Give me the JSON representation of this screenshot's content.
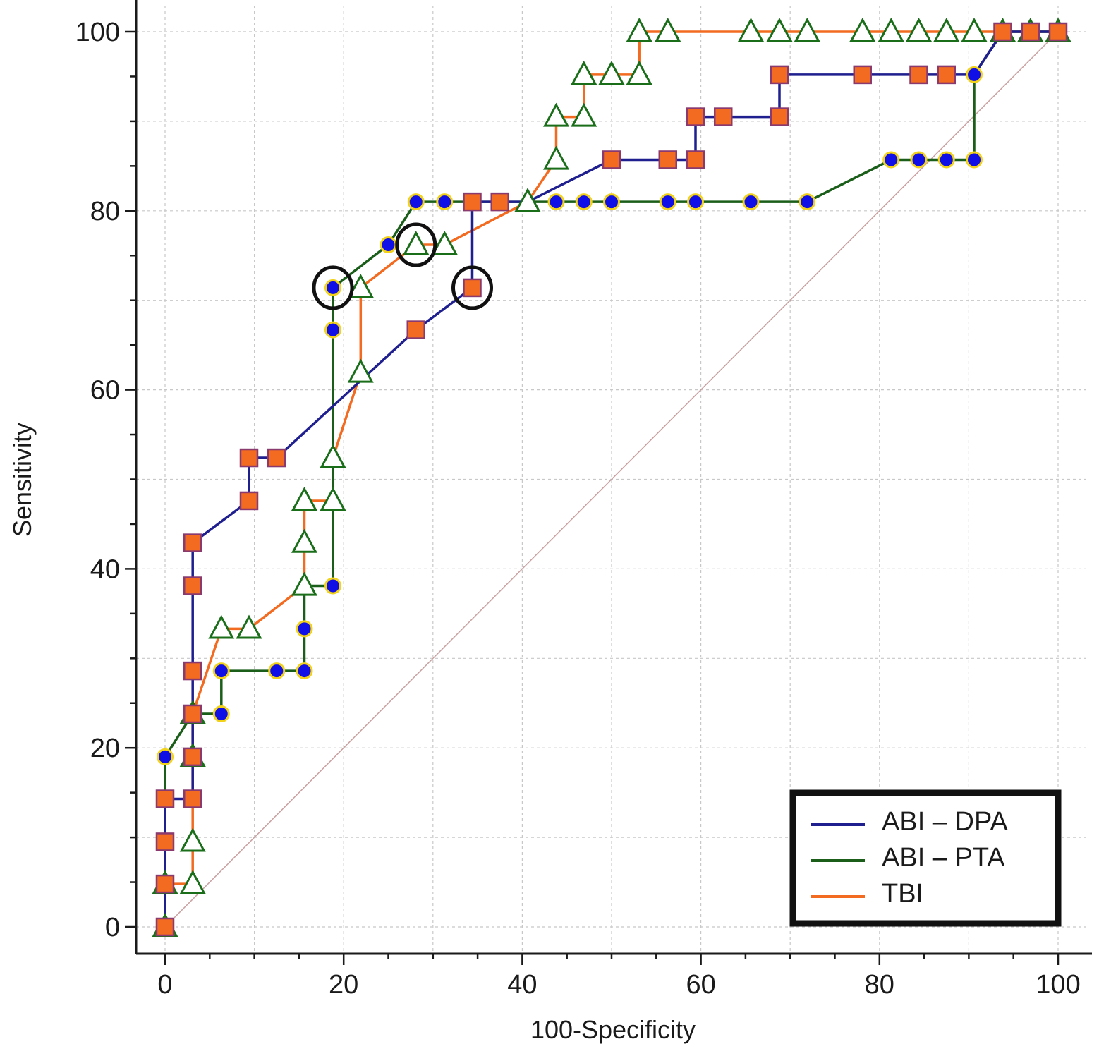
{
  "chart_data": {
    "type": "line",
    "title": "",
    "xlabel": "100-Specificity",
    "ylabel": "Sensitivity",
    "xlim": [
      -3,
      102
    ],
    "ylim": [
      -3,
      103
    ],
    "xticks": [
      0,
      20,
      40,
      60,
      80,
      100
    ],
    "yticks": [
      0,
      20,
      40,
      60,
      80,
      100
    ],
    "grid": true,
    "legend_position": "bottom-right",
    "reference_line": {
      "from": [
        0,
        0
      ],
      "to": [
        100,
        100
      ],
      "color": "#c9a0a0"
    },
    "series": [
      {
        "name": "ABI – DPA",
        "color": "#1f1f8f",
        "marker": "square",
        "marker_fill": "#f26b21",
        "marker_edge": "#8a3a6e",
        "points": [
          [
            0,
            0
          ],
          [
            0,
            4.8
          ],
          [
            0,
            9.5
          ],
          [
            0,
            14.3
          ],
          [
            3.1,
            14.3
          ],
          [
            3.1,
            19
          ],
          [
            3.1,
            23.8
          ],
          [
            3.1,
            28.6
          ],
          [
            3.1,
            38.1
          ],
          [
            3.1,
            42.9
          ],
          [
            9.4,
            47.6
          ],
          [
            9.4,
            52.4
          ],
          [
            12.5,
            52.4
          ],
          [
            28.1,
            66.7
          ],
          [
            34.4,
            71.4
          ],
          [
            34.4,
            81
          ],
          [
            37.5,
            81
          ],
          [
            40.6,
            81
          ],
          [
            50,
            85.7
          ],
          [
            56.3,
            85.7
          ],
          [
            59.4,
            85.7
          ],
          [
            59.4,
            90.5
          ],
          [
            62.5,
            90.5
          ],
          [
            68.8,
            90.5
          ],
          [
            68.8,
            95.2
          ],
          [
            78.1,
            95.2
          ],
          [
            84.4,
            95.2
          ],
          [
            87.5,
            95.2
          ],
          [
            90.6,
            95.2
          ],
          [
            93.8,
            100
          ],
          [
            96.9,
            100
          ],
          [
            100,
            100
          ]
        ],
        "markers": [
          [
            0,
            0
          ],
          [
            0,
            4.8
          ],
          [
            0,
            9.5
          ],
          [
            0,
            14.3
          ],
          [
            3.1,
            14.3
          ],
          [
            3.1,
            19
          ],
          [
            3.1,
            23.8
          ],
          [
            3.1,
            28.6
          ],
          [
            3.1,
            38.1
          ],
          [
            3.1,
            42.9
          ],
          [
            9.4,
            47.6
          ],
          [
            9.4,
            52.4
          ],
          [
            12.5,
            52.4
          ],
          [
            28.1,
            66.7
          ],
          [
            34.4,
            71.4
          ],
          [
            34.4,
            81
          ],
          [
            37.5,
            81
          ],
          [
            50,
            85.7
          ],
          [
            56.3,
            85.7
          ],
          [
            59.4,
            85.7
          ],
          [
            59.4,
            90.5
          ],
          [
            62.5,
            90.5
          ],
          [
            68.8,
            90.5
          ],
          [
            68.8,
            95.2
          ],
          [
            78.1,
            95.2
          ],
          [
            84.4,
            95.2
          ],
          [
            87.5,
            95.2
          ],
          [
            93.8,
            100
          ],
          [
            96.9,
            100
          ],
          [
            100,
            100
          ]
        ]
      },
      {
        "name": "ABI – PTA",
        "color": "#1a5e1a",
        "marker": "circle",
        "marker_fill": "#1010e6",
        "marker_edge": "#f2d21b",
        "points": [
          [
            0,
            4.8
          ],
          [
            0,
            9.5
          ],
          [
            0,
            14.3
          ],
          [
            0,
            19
          ],
          [
            3.1,
            23.8
          ],
          [
            6.3,
            23.8
          ],
          [
            6.3,
            28.6
          ],
          [
            12.5,
            28.6
          ],
          [
            15.6,
            28.6
          ],
          [
            15.6,
            33.3
          ],
          [
            15.6,
            38.1
          ],
          [
            18.8,
            38.1
          ],
          [
            18.8,
            66.7
          ],
          [
            18.8,
            71.4
          ],
          [
            25,
            76.2
          ],
          [
            28.1,
            81
          ],
          [
            31.3,
            81
          ],
          [
            34.4,
            81
          ],
          [
            37.5,
            81
          ],
          [
            43.8,
            81
          ],
          [
            46.9,
            81
          ],
          [
            50,
            81
          ],
          [
            56.3,
            81
          ],
          [
            59.4,
            81
          ],
          [
            65.6,
            81
          ],
          [
            71.9,
            81
          ],
          [
            81.3,
            85.7
          ],
          [
            84.4,
            85.7
          ],
          [
            87.5,
            85.7
          ],
          [
            90.6,
            85.7
          ],
          [
            90.6,
            95.2
          ],
          [
            93.8,
            100
          ],
          [
            100,
            100
          ]
        ],
        "markers": [
          [
            0,
            9.5
          ],
          [
            0,
            14.3
          ],
          [
            0,
            19
          ],
          [
            6.3,
            23.8
          ],
          [
            6.3,
            28.6
          ],
          [
            12.5,
            28.6
          ],
          [
            15.6,
            28.6
          ],
          [
            15.6,
            33.3
          ],
          [
            18.8,
            38.1
          ],
          [
            18.8,
            66.7
          ],
          [
            18.8,
            71.4
          ],
          [
            25,
            76.2
          ],
          [
            28.1,
            81
          ],
          [
            31.3,
            81
          ],
          [
            34.4,
            81
          ],
          [
            37.5,
            81
          ],
          [
            43.8,
            81
          ],
          [
            46.9,
            81
          ],
          [
            50,
            81
          ],
          [
            56.3,
            81
          ],
          [
            59.4,
            81
          ],
          [
            65.6,
            81
          ],
          [
            71.9,
            81
          ],
          [
            81.3,
            85.7
          ],
          [
            84.4,
            85.7
          ],
          [
            87.5,
            85.7
          ],
          [
            90.6,
            85.7
          ],
          [
            90.6,
            95.2
          ]
        ]
      },
      {
        "name": "TBI",
        "color": "#f26b21",
        "marker": "triangle",
        "marker_fill": "#ffffff",
        "marker_edge": "#1a6e1a",
        "points": [
          [
            0,
            0
          ],
          [
            0,
            4.8
          ],
          [
            3.1,
            4.8
          ],
          [
            3.1,
            9.5
          ],
          [
            3.1,
            19
          ],
          [
            3.1,
            23.8
          ],
          [
            6.3,
            33.3
          ],
          [
            9.4,
            33.3
          ],
          [
            15.6,
            38.1
          ],
          [
            15.6,
            42.9
          ],
          [
            15.6,
            47.6
          ],
          [
            18.8,
            47.6
          ],
          [
            18.8,
            52.4
          ],
          [
            21.9,
            61.9
          ],
          [
            21.9,
            71.4
          ],
          [
            28.1,
            76.2
          ],
          [
            31.3,
            76.2
          ],
          [
            40.6,
            81
          ],
          [
            43.8,
            85.7
          ],
          [
            43.8,
            90.5
          ],
          [
            46.9,
            90.5
          ],
          [
            46.9,
            95.2
          ],
          [
            50,
            95.2
          ],
          [
            53.1,
            95.2
          ],
          [
            53.1,
            100
          ],
          [
            56.3,
            100
          ],
          [
            65.6,
            100
          ],
          [
            68.8,
            100
          ],
          [
            71.9,
            100
          ],
          [
            78.1,
            100
          ],
          [
            81.3,
            100
          ],
          [
            84.4,
            100
          ],
          [
            87.5,
            100
          ],
          [
            90.6,
            100
          ],
          [
            93.8,
            100
          ],
          [
            96.9,
            100
          ],
          [
            100,
            100
          ]
        ],
        "markers": [
          [
            0,
            0
          ],
          [
            0,
            4.8
          ],
          [
            3.1,
            4.8
          ],
          [
            3.1,
            9.5
          ],
          [
            3.1,
            19
          ],
          [
            3.1,
            23.8
          ],
          [
            6.3,
            33.3
          ],
          [
            9.4,
            33.3
          ],
          [
            15.6,
            38.1
          ],
          [
            15.6,
            42.9
          ],
          [
            15.6,
            47.6
          ],
          [
            18.8,
            47.6
          ],
          [
            18.8,
            52.4
          ],
          [
            21.9,
            61.9
          ],
          [
            21.9,
            71.4
          ],
          [
            28.1,
            76.2
          ],
          [
            31.3,
            76.2
          ],
          [
            40.6,
            81
          ],
          [
            43.8,
            85.7
          ],
          [
            43.8,
            90.5
          ],
          [
            46.9,
            90.5
          ],
          [
            46.9,
            95.2
          ],
          [
            50,
            95.2
          ],
          [
            53.1,
            95.2
          ],
          [
            53.1,
            100
          ],
          [
            56.3,
            100
          ],
          [
            65.6,
            100
          ],
          [
            68.8,
            100
          ],
          [
            71.9,
            100
          ],
          [
            78.1,
            100
          ],
          [
            81.3,
            100
          ],
          [
            84.4,
            100
          ],
          [
            87.5,
            100
          ],
          [
            90.6,
            100
          ],
          [
            93.8,
            100
          ],
          [
            96.9,
            100
          ],
          [
            100,
            100
          ]
        ]
      }
    ],
    "annotations": [
      {
        "type": "circle",
        "x": 18.8,
        "y": 71.4,
        "series": "ABI – PTA"
      },
      {
        "type": "circle",
        "x": 28.1,
        "y": 76.2,
        "series": "TBI"
      },
      {
        "type": "circle",
        "x": 34.4,
        "y": 71.4,
        "series": "ABI – DPA"
      }
    ]
  }
}
